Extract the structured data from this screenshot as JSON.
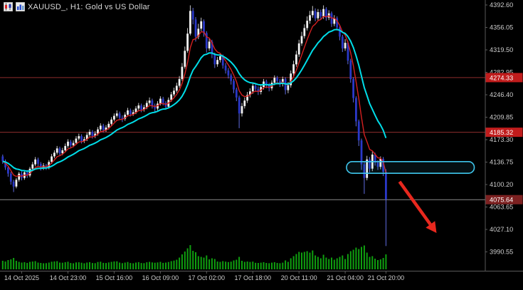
{
  "header": {
    "symbol": "XAUUSD_",
    "timeframe": "H1",
    "description": "Gold vs US Dollar",
    "display": "XAUUSD_, H1:  Gold vs US Dollar",
    "icons": [
      "candlestick-chart-icon",
      "bar-chart-icon"
    ]
  },
  "colors": {
    "bg": "#000000",
    "bull": "#f2f2f2",
    "bear": "#2a38c8",
    "bull_wick": "#c9c9c9",
    "bear_wick": "#5f6ce0",
    "volume": "#0fa00f",
    "level_line": "#8e2d2d",
    "level_badge": "#c01c1c",
    "current_line": "#8a8a8a",
    "current_badge": "#7c2121",
    "axis_text": "#cdcdcd",
    "separator": "#5a5a5a",
    "highlight": "#3ec6ec",
    "arrow": "#e8281e"
  },
  "chart_data": {
    "type": "candlestick",
    "title": "XAUUSD_ H1 - Gold vs US Dollar",
    "y_axis": {
      "min": 3990.55,
      "max": 4392.6,
      "tick_step": 36.55,
      "ticks": [
        "4392.60",
        "4356.05",
        "4319.50",
        "4282.95",
        "4246.40",
        "4209.85",
        "4173.30",
        "4136.75",
        "4100.20",
        "4063.65",
        "4027.10",
        "3990.55"
      ]
    },
    "x_axis": {
      "labels": [
        {
          "i": 7,
          "t": "14 Oct 2025"
        },
        {
          "i": 24,
          "t": "14 Oct 23:00"
        },
        {
          "i": 41,
          "t": "15 Oct 16:00"
        },
        {
          "i": 58,
          "t": "16 Oct 09:00"
        },
        {
          "i": 75,
          "t": "17 Oct 02:00"
        },
        {
          "i": 92,
          "t": "17 Oct 18:00"
        },
        {
          "i": 109,
          "t": "20 Oct 11:00"
        },
        {
          "i": 126,
          "t": "21 Oct 04:00"
        },
        {
          "i": 141,
          "t": "21 Oct 20:00"
        }
      ]
    },
    "levels": [
      {
        "price": 4274.33,
        "badge": "4274.33"
      },
      {
        "price": 4185.32,
        "badge": "4185.32"
      }
    ],
    "current_price": {
      "value": 4075.64,
      "badge": "4075.64"
    },
    "moving_averages": [
      {
        "name": "fast-ma",
        "period": 6,
        "color": "#d42020"
      },
      {
        "name": "slow-ma",
        "period": 17,
        "color": "#00dde8"
      }
    ],
    "annotations": {
      "highlight_box": {
        "start_index": 127,
        "end_index": 174,
        "price_top": 4137.5,
        "price_bottom": 4118.5,
        "color": "#3ec6ec"
      },
      "arrow": {
        "from_index": 146,
        "from_price": 4105,
        "to_index": 159,
        "to_price": 4025,
        "color": "#e8281e"
      }
    },
    "candles": [
      [
        4146,
        4149,
        4134,
        4138,
        1200
      ],
      [
        4138,
        4141,
        4124,
        4128,
        1100
      ],
      [
        4128,
        4131,
        4113,
        4118,
        1300
      ],
      [
        4118,
        4121,
        4100,
        4105,
        1400
      ],
      [
        4105,
        4108,
        4088,
        4097,
        1600
      ],
      [
        4097,
        4111,
        4094,
        4108,
        1200
      ],
      [
        4108,
        4121,
        4105,
        4118,
        1050
      ],
      [
        4118,
        4122,
        4107,
        4111,
        950
      ],
      [
        4111,
        4123,
        4108,
        4120,
        1000
      ],
      [
        4120,
        4124,
        4111,
        4115,
        900
      ],
      [
        4115,
        4129,
        4112,
        4126,
        1050
      ],
      [
        4126,
        4137,
        4123,
        4133,
        1100
      ],
      [
        4133,
        4145,
        4130,
        4141,
        1150
      ],
      [
        4141,
        4144,
        4130,
        4134,
        950
      ],
      [
        4134,
        4137,
        4123,
        4127,
        900
      ],
      [
        4127,
        4135,
        4124,
        4131,
        850
      ],
      [
        4131,
        4134,
        4124,
        4128,
        870
      ],
      [
        4128,
        4140,
        4125,
        4137,
        950
      ],
      [
        4137,
        4150,
        4134,
        4146,
        1070
      ],
      [
        4146,
        4156,
        4143,
        4152,
        1110
      ],
      [
        4152,
        4163,
        4149,
        4159,
        1150
      ],
      [
        4159,
        4162,
        4147,
        4151,
        950
      ],
      [
        4151,
        4160,
        4148,
        4156,
        930
      ],
      [
        4156,
        4167,
        4153,
        4163,
        1000
      ],
      [
        4163,
        4174,
        4160,
        4170,
        1070
      ],
      [
        4170,
        4173,
        4160,
        4164,
        890
      ],
      [
        4164,
        4172,
        4161,
        4168,
        850
      ],
      [
        4168,
        4179,
        4165,
        4175,
        970
      ],
      [
        4175,
        4183,
        4172,
        4179,
        990
      ],
      [
        4179,
        4182,
        4167,
        4171,
        930
      ],
      [
        4171,
        4178,
        4168,
        4174,
        850
      ],
      [
        4174,
        4185,
        4171,
        4181,
        950
      ],
      [
        4181,
        4190,
        4178,
        4186,
        1010
      ],
      [
        4186,
        4189,
        4175,
        4179,
        890
      ],
      [
        4179,
        4187,
        4176,
        4183,
        870
      ],
      [
        4183,
        4194,
        4180,
        4190,
        1030
      ],
      [
        4190,
        4200,
        4187,
        4196,
        1070
      ],
      [
        4196,
        4199,
        4185,
        4189,
        910
      ],
      [
        4189,
        4197,
        4186,
        4193,
        890
      ],
      [
        4193,
        4203,
        4190,
        4199,
        970
      ],
      [
        4199,
        4210,
        4196,
        4206,
        1050
      ],
      [
        4206,
        4216,
        4203,
        4212,
        1110
      ],
      [
        4212,
        4221,
        4209,
        4216,
        1130
      ],
      [
        4216,
        4219,
        4205,
        4209,
        950
      ],
      [
        4209,
        4213,
        4202,
        4207,
        870
      ],
      [
        4207,
        4218,
        4204,
        4214,
        950
      ],
      [
        4214,
        4225,
        4211,
        4221,
        1030
      ],
      [
        4221,
        4224,
        4211,
        4215,
        890
      ],
      [
        4215,
        4222,
        4212,
        4218,
        850
      ],
      [
        4218,
        4228,
        4215,
        4224,
        950
      ],
      [
        4224,
        4233,
        4221,
        4229,
        1010
      ],
      [
        4229,
        4232,
        4218,
        4222,
        890
      ],
      [
        4222,
        4230,
        4219,
        4226,
        870
      ],
      [
        4226,
        4237,
        4223,
        4233,
        990
      ],
      [
        4233,
        4242,
        4230,
        4237,
        1050
      ],
      [
        4237,
        4240,
        4224,
        4228,
        970
      ],
      [
        4228,
        4232,
        4219,
        4224,
        930
      ],
      [
        4224,
        4236,
        4221,
        4232,
        970
      ],
      [
        4232,
        4244,
        4229,
        4240,
        1050
      ],
      [
        4240,
        4243,
        4229,
        4233,
        910
      ],
      [
        4233,
        4236,
        4222,
        4227,
        950
      ],
      [
        4227,
        4242,
        4224,
        4238,
        1030
      ],
      [
        4238,
        4251,
        4235,
        4247,
        1150
      ],
      [
        4247,
        4258,
        4244,
        4253,
        1230
      ],
      [
        4253,
        4266,
        4250,
        4261,
        1350
      ],
      [
        4261,
        4277,
        4258,
        4272,
        1650
      ],
      [
        4272,
        4298,
        4269,
        4292,
        2100
      ],
      [
        4292,
        4325,
        4289,
        4318,
        2500
      ],
      [
        4318,
        4355,
        4315,
        4346,
        2950
      ],
      [
        4346,
        4392,
        4343,
        4383,
        3400
      ],
      [
        4383,
        4388,
        4361,
        4369,
        2600
      ],
      [
        4369,
        4373,
        4333,
        4341,
        2400
      ],
      [
        4341,
        4362,
        4337,
        4354,
        1850
      ],
      [
        4354,
        4372,
        4350,
        4366,
        1750
      ],
      [
        4366,
        4369,
        4341,
        4347,
        1650
      ],
      [
        4347,
        4350,
        4315,
        4322,
        1950
      ],
      [
        4322,
        4339,
        4318,
        4333,
        1400
      ],
      [
        4333,
        4336,
        4306,
        4312,
        1550
      ],
      [
        4312,
        4315,
        4290,
        4296,
        1450
      ],
      [
        4296,
        4308,
        4292,
        4303,
        1100
      ],
      [
        4303,
        4314,
        4299,
        4309,
        1050
      ],
      [
        4309,
        4312,
        4289,
        4294,
        1150
      ],
      [
        4294,
        4298,
        4281,
        4286,
        1080
      ],
      [
        4286,
        4290,
        4273,
        4278,
        1020
      ],
      [
        4278,
        4281,
        4263,
        4269,
        1080
      ],
      [
        4269,
        4272,
        4249,
        4255,
        1250
      ],
      [
        4255,
        4258,
        4236,
        4242,
        1350
      ],
      [
        4242,
        4245,
        4192,
        4216,
        1750
      ],
      [
        4216,
        4233,
        4211,
        4228,
        1200
      ],
      [
        4228,
        4242,
        4224,
        4237,
        1050
      ],
      [
        4237,
        4251,
        4233,
        4246,
        1100
      ],
      [
        4246,
        4257,
        4242,
        4252,
        1040
      ],
      [
        4252,
        4266,
        4248,
        4261,
        1090
      ],
      [
        4261,
        4265,
        4251,
        4256,
        920
      ],
      [
        4256,
        4260,
        4246,
        4251,
        900
      ],
      [
        4251,
        4263,
        4247,
        4259,
        940
      ],
      [
        4259,
        4272,
        4255,
        4268,
        1000
      ],
      [
        4268,
        4271,
        4257,
        4262,
        900
      ],
      [
        4262,
        4266,
        4252,
        4257,
        860
      ],
      [
        4257,
        4270,
        4253,
        4266,
        940
      ],
      [
        4266,
        4278,
        4262,
        4274,
        1000
      ],
      [
        4274,
        4277,
        4264,
        4269,
        900
      ],
      [
        4269,
        4272,
        4259,
        4264,
        860
      ],
      [
        4264,
        4276,
        4260,
        4272,
        940
      ],
      [
        4272,
        4275,
        4247,
        4254,
        1250
      ],
      [
        4254,
        4267,
        4249,
        4262,
        1050
      ],
      [
        4262,
        4286,
        4258,
        4281,
        1550
      ],
      [
        4281,
        4302,
        4277,
        4296,
        1850
      ],
      [
        4296,
        4318,
        4292,
        4312,
        2150
      ],
      [
        4312,
        4336,
        4308,
        4330,
        2450
      ],
      [
        4330,
        4349,
        4326,
        4342,
        2350
      ],
      [
        4342,
        4361,
        4338,
        4355,
        2450
      ],
      [
        4355,
        4374,
        4351,
        4367,
        2550
      ],
      [
        4367,
        4383,
        4362,
        4376,
        2350
      ],
      [
        4376,
        4391,
        4372,
        4383,
        2650
      ],
      [
        4383,
        4387,
        4366,
        4371,
        1950
      ],
      [
        4371,
        4386,
        4367,
        4381,
        1750
      ],
      [
        4381,
        4385,
        4369,
        4374,
        1550
      ],
      [
        4374,
        4392,
        4370,
        4386,
        2050
      ],
      [
        4386,
        4389,
        4367,
        4372,
        1650
      ],
      [
        4372,
        4384,
        4368,
        4379,
        1450
      ],
      [
        4379,
        4382,
        4357,
        4362,
        1650
      ],
      [
        4362,
        4376,
        4358,
        4371,
        1350
      ],
      [
        4371,
        4374,
        4351,
        4356,
        1550
      ],
      [
        4356,
        4359,
        4335,
        4341,
        1750
      ],
      [
        4341,
        4344,
        4316,
        4322,
        1950
      ],
      [
        4322,
        4337,
        4318,
        4331,
        1450
      ],
      [
        4331,
        4334,
        4296,
        4302,
        2150
      ],
      [
        4302,
        4305,
        4266,
        4272,
        2550
      ],
      [
        4272,
        4275,
        4234,
        4241,
        2750
      ],
      [
        4241,
        4244,
        4195,
        4203,
        3050
      ],
      [
        4203,
        4206,
        4163,
        4172,
        2850
      ],
      [
        4172,
        4175,
        4124,
        4133,
        3150
      ],
      [
        4133,
        4137,
        4085,
        4111,
        3350
      ],
      [
        4111,
        4147,
        4107,
        4141,
        2350
      ],
      [
        4141,
        4145,
        4120,
        4126,
        1750
      ],
      [
        4126,
        4154,
        4122,
        4149,
        1850
      ],
      [
        4149,
        4152,
        4131,
        4136,
        1500
      ],
      [
        4136,
        4140,
        4124,
        4129,
        1300
      ],
      [
        4129,
        4146,
        4125,
        4142,
        1400
      ],
      [
        4142,
        4145,
        4114,
        4121,
        1600
      ],
      [
        4121,
        4125,
        4000,
        4076,
        2100
      ]
    ]
  }
}
